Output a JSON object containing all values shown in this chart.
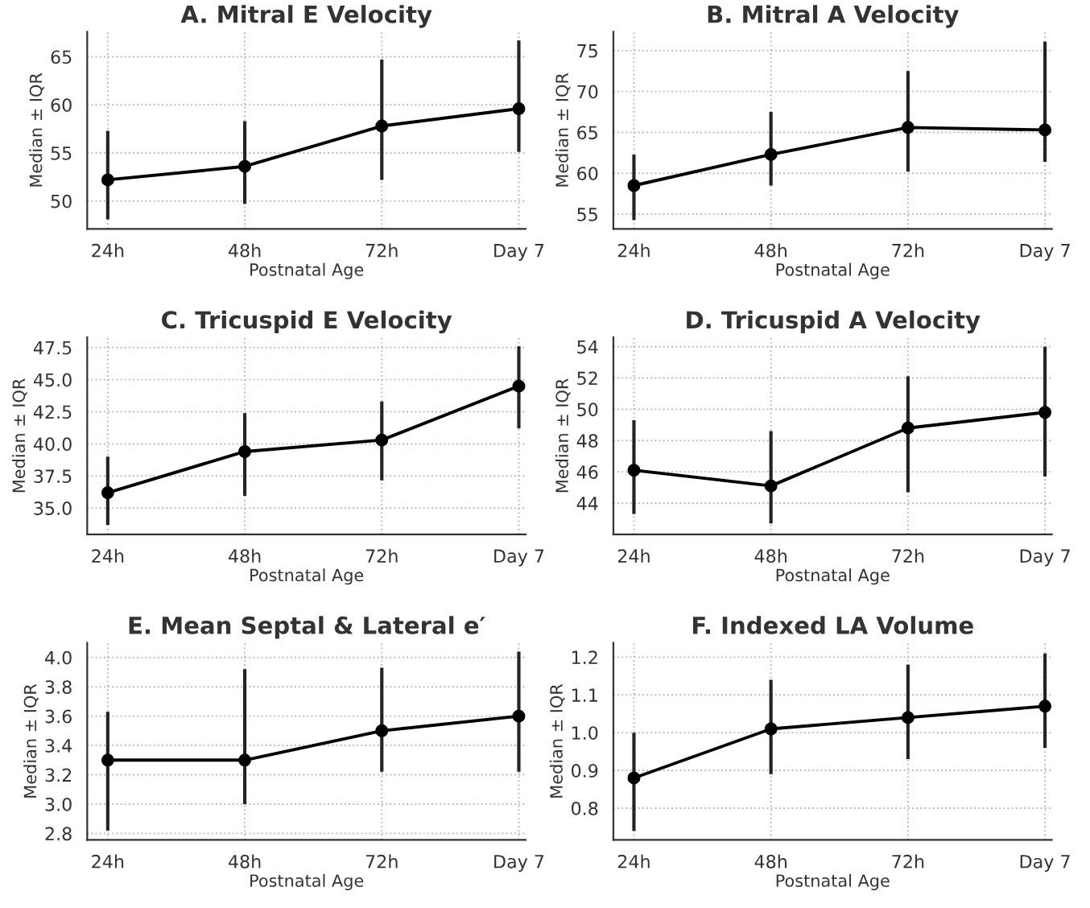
{
  "chart_data": [
    {
      "type": "line",
      "title": "A. Mitral E Velocity",
      "xlabel": "Postnatal Age",
      "ylabel": "Median ± IQR",
      "categories": [
        "24h",
        "48h",
        "72h",
        "Day 7"
      ],
      "ylim": [
        47.1,
        67.6
      ],
      "yticks": [
        50,
        55,
        60,
        65
      ],
      "grid": true,
      "marker": "circle",
      "line_style": "solid",
      "series": [
        {
          "color": "#000000",
          "values": [
            52.2,
            53.6,
            57.8,
            59.6
          ],
          "errors": [
            [
              48.1,
              57.3
            ],
            [
              49.7,
              58.3
            ],
            [
              52.2,
              64.7
            ],
            [
              55.1,
              66.7
            ]
          ]
        }
      ]
    },
    {
      "type": "line",
      "title": "B. Mitral A Velocity",
      "xlabel": "Postnatal Age",
      "ylabel": "Median ± IQR",
      "categories": [
        "24h",
        "48h",
        "72h",
        "Day 7"
      ],
      "ylim": [
        53.2,
        77.3
      ],
      "yticks": [
        55,
        60,
        65,
        70,
        75
      ],
      "grid": true,
      "marker": "circle",
      "line_style": "solid",
      "series": [
        {
          "color": "#000000",
          "values": [
            58.5,
            62.3,
            65.6,
            65.3
          ],
          "errors": [
            [
              54.3,
              62.3
            ],
            [
              58.5,
              67.5
            ],
            [
              60.2,
              72.5
            ],
            [
              61.4,
              76.1
            ]
          ]
        }
      ]
    },
    {
      "type": "line",
      "title": "C. Tricuspid E Velocity",
      "xlabel": "Postnatal Age",
      "ylabel": "Median ± IQR",
      "categories": [
        "24h",
        "48h",
        "72h",
        "Day 7"
      ],
      "ylim": [
        32.95,
        48.3
      ],
      "yticks": [
        {
          "value": 35,
          "label": "35.0"
        },
        37.5,
        {
          "value": 40,
          "label": "40.0"
        },
        42.5,
        {
          "value": 45,
          "label": "45.0"
        },
        47.5
      ],
      "grid": true,
      "marker": "circle",
      "line_style": "solid",
      "series": [
        {
          "color": "#000000",
          "values": [
            36.2,
            39.4,
            40.3,
            44.5
          ],
          "errors": [
            [
              33.7,
              39.0
            ],
            [
              35.95,
              42.4
            ],
            [
              37.15,
              43.3
            ],
            [
              41.2,
              47.6
            ]
          ]
        }
      ]
    },
    {
      "type": "line",
      "title": "D. Tricuspid A Velocity",
      "xlabel": "Postnatal Age",
      "ylabel": "Median ± IQR",
      "categories": [
        "24h",
        "48h",
        "72h",
        "Day 7"
      ],
      "ylim": [
        42.0,
        54.6
      ],
      "yticks": [
        44,
        46,
        48,
        50,
        52,
        54
      ],
      "grid": true,
      "marker": "circle",
      "line_style": "solid",
      "series": [
        {
          "color": "#000000",
          "values": [
            46.1,
            45.1,
            48.8,
            49.8
          ],
          "errors": [
            [
              43.3,
              49.3
            ],
            [
              42.7,
              48.6
            ],
            [
              44.7,
              52.1
            ],
            [
              45.7,
              54.0
            ]
          ]
        }
      ]
    },
    {
      "type": "line",
      "title": "E. Mean Septal & Lateral e′",
      "xlabel": "Postnatal Age",
      "ylabel": "Median ± IQR",
      "categories": [
        "24h",
        "48h",
        "72h",
        "Day 7"
      ],
      "ylim": [
        2.756,
        4.1
      ],
      "yticks": [
        2.8,
        {
          "value": 3,
          "label": "3.0"
        },
        3.2,
        3.4,
        3.6,
        3.8,
        {
          "value": 4,
          "label": "4.0"
        }
      ],
      "grid": true,
      "marker": "circle",
      "line_style": "solid",
      "series": [
        {
          "color": "#000000",
          "values": [
            3.3,
            3.3,
            3.5,
            3.6
          ],
          "errors": [
            [
              2.82,
              3.63
            ],
            [
              3.0,
              3.92
            ],
            [
              3.22,
              3.93
            ],
            [
              3.22,
              4.04
            ]
          ]
        }
      ]
    },
    {
      "type": "line",
      "title": "F. Indexed LA Volume",
      "xlabel": "Postnatal Age",
      "ylabel": "Median ± IQR",
      "categories": [
        "24h",
        "48h",
        "72h",
        "Day 7"
      ],
      "ylim": [
        0.716,
        1.238
      ],
      "yticks": [
        0.8,
        0.9,
        {
          "value": 1,
          "label": "1.0"
        },
        1.1,
        1.2
      ],
      "grid": true,
      "marker": "circle",
      "line_style": "solid",
      "series": [
        {
          "color": "#000000",
          "values": [
            0.88,
            1.01,
            1.04,
            1.07
          ],
          "errors": [
            [
              0.74,
              1.0
            ],
            [
              0.89,
              1.14
            ],
            [
              0.93,
              1.18
            ],
            [
              0.96,
              1.21
            ]
          ]
        }
      ]
    }
  ]
}
